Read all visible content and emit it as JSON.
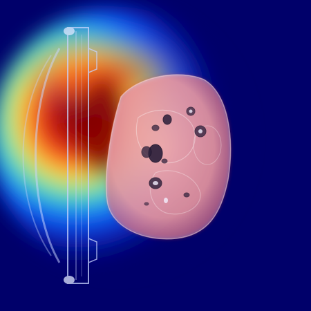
{
  "image": {
    "description_kind": "medical-scan-heatmap-overlay",
    "colormap": "jet",
    "colors": {
      "background": "#00006a",
      "heat_peak": "#8a0000",
      "heat_high": "#e01a1a",
      "heat_mid_high": "#ff9a2a",
      "heat_mid": "#f5f04a",
      "heat_mid_low": "#40e0c0",
      "heat_low": "#1060ff",
      "heat_floor": "#0a1cb0",
      "tissue": "#e8e4f0",
      "tissue_shadow": "#b8b0d8",
      "dark_spot": "#2a1e3a",
      "frame_outline": "#c8d4ff"
    }
  }
}
